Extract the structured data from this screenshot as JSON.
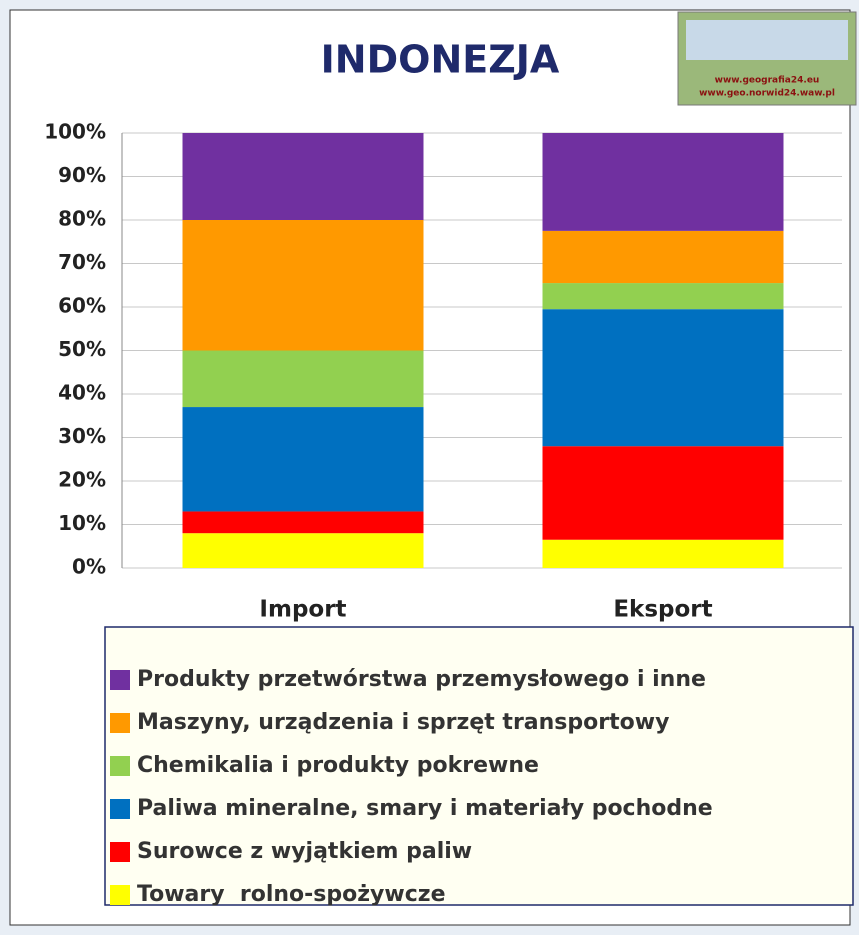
{
  "chart_data": {
    "type": "bar",
    "stacked": true,
    "title": "INDONEZJA",
    "categories": [
      "Import",
      "Eksport"
    ],
    "series": [
      {
        "name": "Towary  rolno-spożywcze",
        "color": "#ffff00",
        "values": [
          8,
          6.5
        ]
      },
      {
        "name": "Surowce z wyjątkiem paliw",
        "color": "#ff0000",
        "values": [
          5,
          21.5
        ]
      },
      {
        "name": "Paliwa mineralne, smary i materiały pochodne",
        "color": "#0070c0",
        "values": [
          24,
          31.5
        ]
      },
      {
        "name": "Chemikalia i produkty pokrewne",
        "color": "#92d050",
        "values": [
          13,
          6
        ]
      },
      {
        "name": "Maszyny, urządzenia i sprzęt transportowy",
        "color": "#ff9900",
        "values": [
          30,
          12
        ]
      },
      {
        "name": "Produkty przetwórstwa przemysłowego i inne",
        "color": "#7030a0",
        "values": [
          20,
          22.5
        ]
      }
    ],
    "ylim": [
      0,
      100
    ],
    "yticks": [
      {
        "value": 0,
        "label": "0%"
      },
      {
        "value": 10,
        "label": "10%"
      },
      {
        "value": 20,
        "label": "20%"
      },
      {
        "value": 30,
        "label": "30%"
      },
      {
        "value": 40,
        "label": "40%"
      },
      {
        "value": 50,
        "label": "50%"
      },
      {
        "value": 60,
        "label": "60%"
      },
      {
        "value": 70,
        "label": "70%"
      },
      {
        "value": 80,
        "label": "80%"
      },
      {
        "value": 90,
        "label": "90%"
      },
      {
        "value": 100,
        "label": "100%"
      }
    ],
    "grid": true
  },
  "logo": {
    "lines": [
      "www.geografia24.eu",
      "www.geo.norwid24.waw.pl"
    ]
  }
}
